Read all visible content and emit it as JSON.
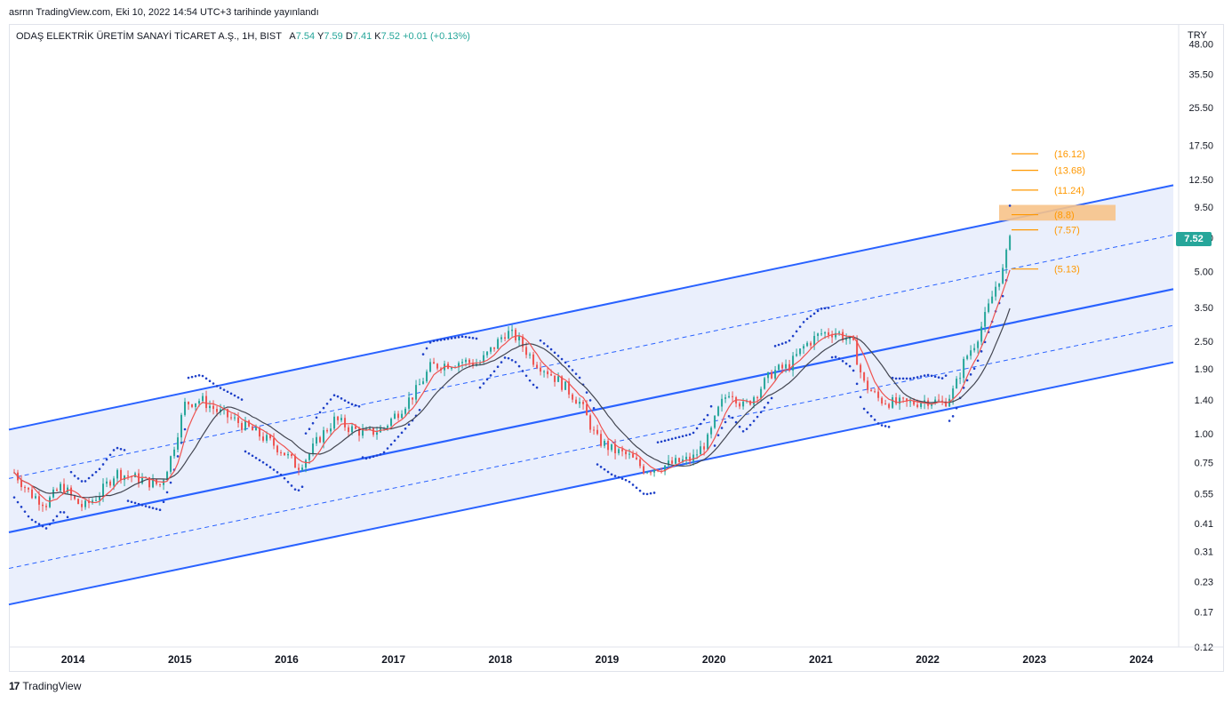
{
  "header": {
    "published": "asrnn TradingView.com, Eki 10, 2022 14:54 UTC+3 tarihinde yayınlandı"
  },
  "legend": {
    "symbol": "ODAŞ ELEKTRİK ÜRETİM SANAYİ TİCARET A.Ş., 1H, BIST",
    "open_label": "A",
    "open": "7.54",
    "high_label": "Y",
    "high": "7.59",
    "low_label": "D",
    "low": "7.41",
    "close_label": "K",
    "close": "7.52",
    "change": "+0.01 (+0.13%)"
  },
  "currency": "TRY",
  "last_price": "7.52",
  "footer": {
    "brand": "TradingView"
  },
  "colors": {
    "channel": "#2962ff",
    "channel_fill": "#e8edfc",
    "up": "#26a69a",
    "down": "#ef5350",
    "fast_ma": "#ef5350",
    "slow_ma": "#434651",
    "sar": "#1e40c8",
    "fib": "#ff9800",
    "highlight": "#f7c38a"
  },
  "chart_data": {
    "type": "line",
    "scale": "log",
    "x_ticks": [
      "2014",
      "2015",
      "2016",
      "2017",
      "2018",
      "2019",
      "2020",
      "2021",
      "2022",
      "2023",
      "2024"
    ],
    "y_ticks": [
      "48.00",
      "35.50",
      "25.50",
      "17.50",
      "12.50",
      "9.50",
      "7.00",
      "5.00",
      "3.50",
      "2.50",
      "1.90",
      "1.40",
      "1.00",
      "0.75",
      "0.55",
      "0.41",
      "0.31",
      "0.23",
      "0.17",
      "0.12"
    ],
    "ylim": [
      0.12,
      58
    ],
    "xlim": [
      2013.4,
      2024.35
    ],
    "series": [
      {
        "values": [
          [
            2013.45,
            0.68
          ],
          [
            2013.6,
            0.55
          ],
          [
            2013.75,
            0.5
          ],
          [
            2013.9,
            0.6
          ],
          [
            2014.0,
            0.52
          ],
          [
            2014.1,
            0.48
          ],
          [
            2014.25,
            0.55
          ],
          [
            2014.4,
            0.68
          ],
          [
            2014.55,
            0.65
          ],
          [
            2014.7,
            0.62
          ],
          [
            2014.82,
            0.6
          ],
          [
            2014.92,
            0.8
          ],
          [
            2015.05,
            1.35
          ],
          [
            2015.2,
            1.4
          ],
          [
            2015.35,
            1.25
          ],
          [
            2015.5,
            1.15
          ],
          [
            2015.65,
            1.05
          ],
          [
            2015.8,
            0.95
          ],
          [
            2015.95,
            0.85
          ],
          [
            2016.1,
            0.72
          ],
          [
            2016.2,
            0.8
          ],
          [
            2016.3,
            0.95
          ],
          [
            2016.45,
            1.15
          ],
          [
            2016.6,
            1.05
          ],
          [
            2016.75,
            1.0
          ],
          [
            2016.9,
            1.05
          ],
          [
            2017.05,
            1.25
          ],
          [
            2017.2,
            1.5
          ],
          [
            2017.35,
            1.95
          ],
          [
            2017.5,
            2.0
          ],
          [
            2017.65,
            2.05
          ],
          [
            2017.8,
            2.0
          ],
          [
            2017.95,
            2.4
          ],
          [
            2018.05,
            2.75
          ],
          [
            2018.15,
            2.6
          ],
          [
            2018.3,
            2.1
          ],
          [
            2018.45,
            1.85
          ],
          [
            2018.6,
            1.6
          ],
          [
            2018.75,
            1.35
          ],
          [
            2018.9,
            0.95
          ],
          [
            2019.05,
            0.85
          ],
          [
            2019.2,
            0.8
          ],
          [
            2019.35,
            0.7
          ],
          [
            2019.5,
            0.72
          ],
          [
            2019.65,
            0.75
          ],
          [
            2019.8,
            0.78
          ],
          [
            2019.95,
            0.95
          ],
          [
            2020.05,
            1.3
          ],
          [
            2020.15,
            1.55
          ],
          [
            2020.28,
            1.3
          ],
          [
            2020.4,
            1.5
          ],
          [
            2020.55,
            1.85
          ],
          [
            2020.7,
            1.95
          ],
          [
            2020.85,
            2.4
          ],
          [
            2021.0,
            2.7
          ],
          [
            2021.15,
            2.75
          ],
          [
            2021.3,
            2.45
          ],
          [
            2021.4,
            1.65
          ],
          [
            2021.55,
            1.4
          ],
          [
            2021.7,
            1.35
          ],
          [
            2021.85,
            1.35
          ],
          [
            2022.0,
            1.4
          ],
          [
            2022.15,
            1.35
          ],
          [
            2022.25,
            1.55
          ],
          [
            2022.35,
            2.1
          ],
          [
            2022.45,
            2.5
          ],
          [
            2022.55,
            3.3
          ],
          [
            2022.65,
            4.5
          ],
          [
            2022.72,
            5.2
          ],
          [
            2022.77,
            7.52
          ]
        ]
      }
    ],
    "channel": {
      "upper": [
        [
          2013.4,
          1.04
        ],
        [
          2024.3,
          11.8
        ]
      ],
      "mid_upper": [
        [
          2013.4,
          0.64
        ],
        [
          2024.3,
          7.2
        ]
      ],
      "median": [
        [
          2013.4,
          0.375
        ],
        [
          2024.3,
          4.2
        ]
      ],
      "mid_lower": [
        [
          2013.4,
          0.262
        ],
        [
          2024.3,
          2.93
        ]
      ],
      "lower": [
        [
          2013.4,
          0.183
        ],
        [
          2024.3,
          2.03
        ]
      ]
    },
    "fib_levels": [
      {
        "label": "(16.12)",
        "value": 16.12
      },
      {
        "label": "(13.68)",
        "value": 13.68
      },
      {
        "label": "(11.24)",
        "value": 11.24
      },
      {
        "label": "(8.8)",
        "value": 8.8
      },
      {
        "label": "(7.57)",
        "value": 7.57
      },
      {
        "label": "(5.13)",
        "value": 5.13
      }
    ],
    "highlight_zone": [
      8.3,
      9.7
    ],
    "grid": false,
    "legend": "top-left"
  }
}
